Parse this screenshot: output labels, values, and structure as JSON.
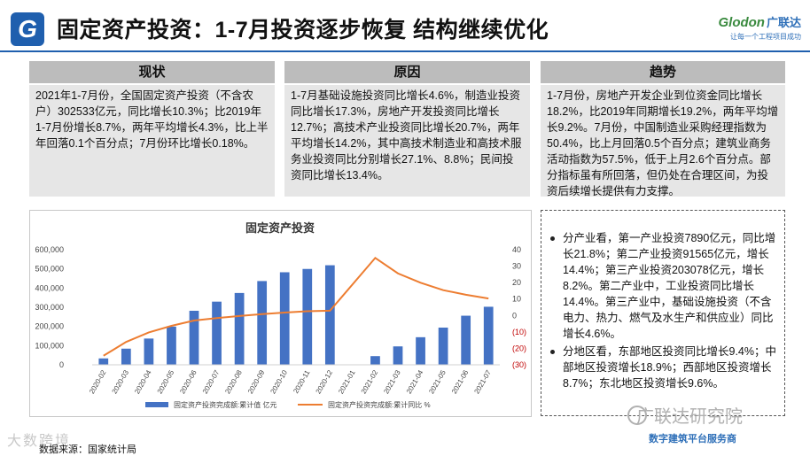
{
  "header": {
    "logo_letter": "G",
    "title": "固定资产投资：1-7月投资逐步恢复 结构继续优化",
    "brand": {
      "name": "Glodon",
      "name_cn": "广联达",
      "slogan": "让每一个工程项目成功"
    }
  },
  "columns": [
    {
      "heading": "现状",
      "body": "2021年1-7月份，全国固定资产投资（不含农户）302533亿元，同比增长10.3%；比2019年1-7月份增长8.7%，两年平均增长4.3%，比上半年回落0.1个百分点；7月份环比增长0.18%。"
    },
    {
      "heading": "原因",
      "body": "1-7月基础设施投资同比增长4.6%，制造业投资同比增长17.3%，房地产开发投资同比增长12.7%；高技术产业投资同比增长20.7%，两年平均增长14.2%，其中高技术制造业和高技术服务业投资同比分别增长27.1%、8.8%；民间投资同比增长13.4%。"
    },
    {
      "heading": "趋势",
      "body": "1-7月份，房地产开发企业到位资金同比增长18.2%，比2019年同期增长19.2%，两年平均增长9.2%。7月份，中国制造业采购经理指数为50.4%，比上月回落0.5个百分点；建筑业商务活动指数为57.5%，低于上月2.6个百分点。部分指标虽有所回落，但仍处在合理区间，为投资后续增长提供有力支撑。"
    }
  ],
  "chart_data": {
    "type": "bar",
    "title": "固定资产投资",
    "categories": [
      "2020-02",
      "2020-03",
      "2020-04",
      "2020-05",
      "2020-06",
      "2020-07",
      "2020-08",
      "2020-09",
      "2020-10",
      "2020-11",
      "2020-12",
      "2021-01",
      "2021-02",
      "2021-03",
      "2021-04",
      "2021-05",
      "2021-06",
      "2021-07"
    ],
    "series": [
      {
        "name": "固定资产投资完成额:累计值 亿元",
        "type": "bar",
        "axis": "left",
        "color": "#4472c4",
        "values": [
          33323,
          84145,
          136824,
          199194,
          281603,
          329214,
          374356,
          436530,
          482393,
          499650,
          518907,
          null,
          45236,
          95994,
          143804,
          193917,
          255900,
          302533
        ]
      },
      {
        "name": "固定资产投资完成额:累计同比 %",
        "type": "line",
        "axis": "right",
        "color": "#ed7d31",
        "values": [
          -24.5,
          -16.1,
          -10.3,
          -6.3,
          -3.1,
          -1.6,
          -0.3,
          0.8,
          1.8,
          2.6,
          2.9,
          null,
          35.0,
          25.6,
          19.9,
          15.4,
          12.6,
          10.3
        ]
      }
    ],
    "y_left": {
      "min": 0,
      "max": 600000,
      "ticks": [
        "0",
        "100,000",
        "200,000",
        "300,000",
        "400,000",
        "500,000",
        "600,000"
      ]
    },
    "y_right": {
      "min": -30,
      "max": 40,
      "ticks": [
        "(30)",
        "(20)",
        "(10)",
        "0",
        "10",
        "20",
        "30",
        "40"
      ]
    },
    "legend_position": "bottom",
    "grid": false
  },
  "notes": [
    "分产业看，第一产业投资7890亿元，同比增长21.8%；第二产业投资91565亿元，增长14.4%；第三产业投资203078亿元，增长8.2%。第二产业中，工业投资同比增长14.4%。第三产业中，基础设施投资（不含电力、热力、燃气及水生产和供应业）同比增长4.6%。",
    "分地区看，东部地区投资同比增长9.4%；中部地区投资增长18.9%；西部地区投资增长8.7%；东北地区投资增长9.6%。"
  ],
  "footer": {
    "source": "数据来源：国家统计局",
    "watermark_left": "大数跨境",
    "watermark_right": "广联达研究院",
    "watermark_sub": "数字建筑平台服务商"
  }
}
